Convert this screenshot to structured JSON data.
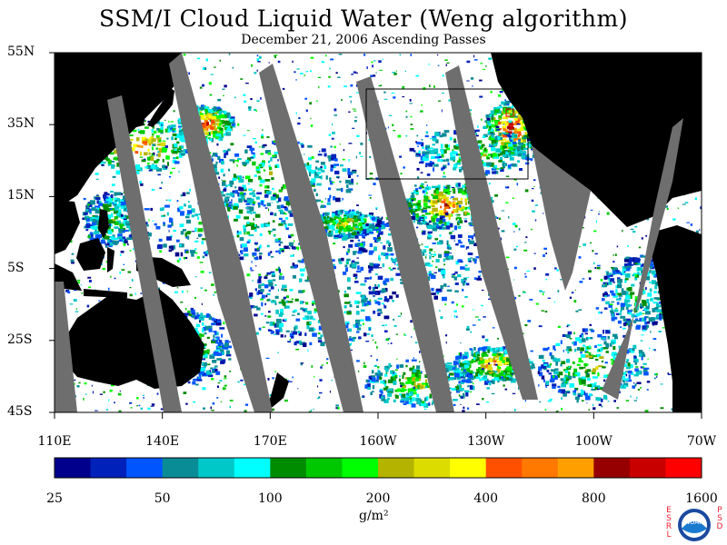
{
  "title": "SSM/I Cloud Liquid Water (Weng algorithm)",
  "subtitle": "December 21, 2006  Ascending Passes",
  "lat_labels": [
    "55N",
    "35N",
    "15N",
    "5S",
    "25S",
    "45S"
  ],
  "lon_labels": [
    "110E",
    "140E",
    "170E",
    "160W",
    "130W",
    "100W",
    "70W"
  ],
  "colorbar": {
    "labels": [
      "25",
      "50",
      "100",
      "200",
      "400",
      "800",
      "1600"
    ],
    "units": "g/m²",
    "colors": [
      "#00008c",
      "#0022bb",
      "#0055ff",
      "#0a8c96",
      "#00c8c8",
      "#00ffff",
      "#008c00",
      "#00c800",
      "#00ff00",
      "#b4b400",
      "#dcdc00",
      "#ffff00",
      "#ff5000",
      "#ff7800",
      "#ffa000",
      "#960000",
      "#c80000",
      "#ff0000"
    ]
  },
  "colors": {
    "land": "#000000",
    "gap": "#6e6e6e",
    "ocean": "#ffffff"
  },
  "logo": {
    "name": "noaa-logo",
    "left_text": "ESRL",
    "right_text": "PSD",
    "emblem_text": "NOAA"
  }
}
